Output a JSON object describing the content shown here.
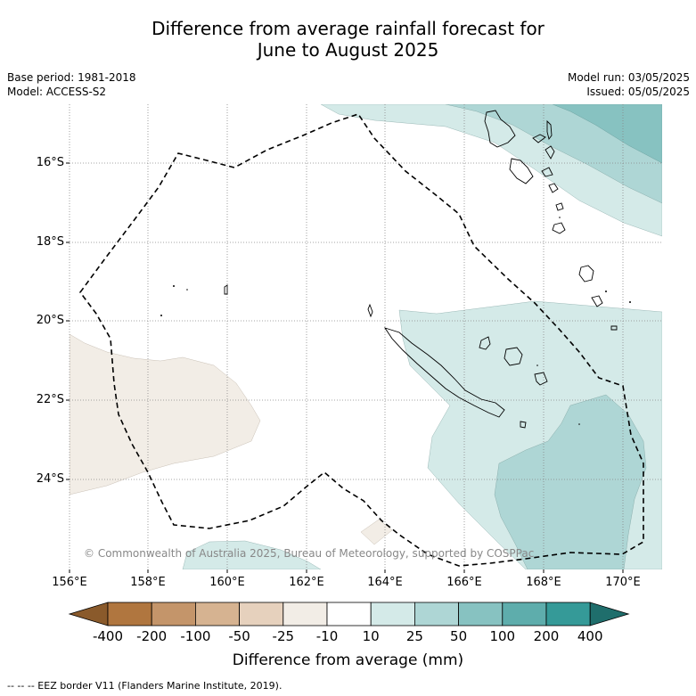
{
  "title_line1": "Difference from average rainfall forecast for",
  "title_line2": "June to August 2025",
  "base_period": "Base period: 1981-2018",
  "model": "Model: ACCESS-S2",
  "model_run": "Model run: 03/05/2025",
  "issued": "Issued: 05/05/2025",
  "lat_labels": [
    "16°S",
    "18°S",
    "20°S",
    "22°S",
    "24°S"
  ],
  "lon_labels": [
    "156°E",
    "158°E",
    "160°E",
    "162°E",
    "164°E",
    "166°E",
    "168°E",
    "170°E"
  ],
  "copyright": "© Commonwealth of Australia 2025, Bureau of Meteorology, supported by COSPPac",
  "colorbar": {
    "title": "Difference from average (mm)",
    "tick_labels": [
      "-400",
      "-200",
      "-100",
      "-50",
      "-25",
      "-10",
      "10",
      "25",
      "50",
      "100",
      "200",
      "400"
    ],
    "colors": [
      "#8a5a2b",
      "#b0763f",
      "#c4956a",
      "#d6b391",
      "#e6d1bd",
      "#f2ede6",
      "#ffffff",
      "#d4eae8",
      "#aed6d5",
      "#87c2c1",
      "#5eadac",
      "#359a98",
      "#1f6e6c"
    ]
  },
  "legend_footer": "--  --  -- EEZ border V11 (Flanders Marine Institute, 2019)."
}
